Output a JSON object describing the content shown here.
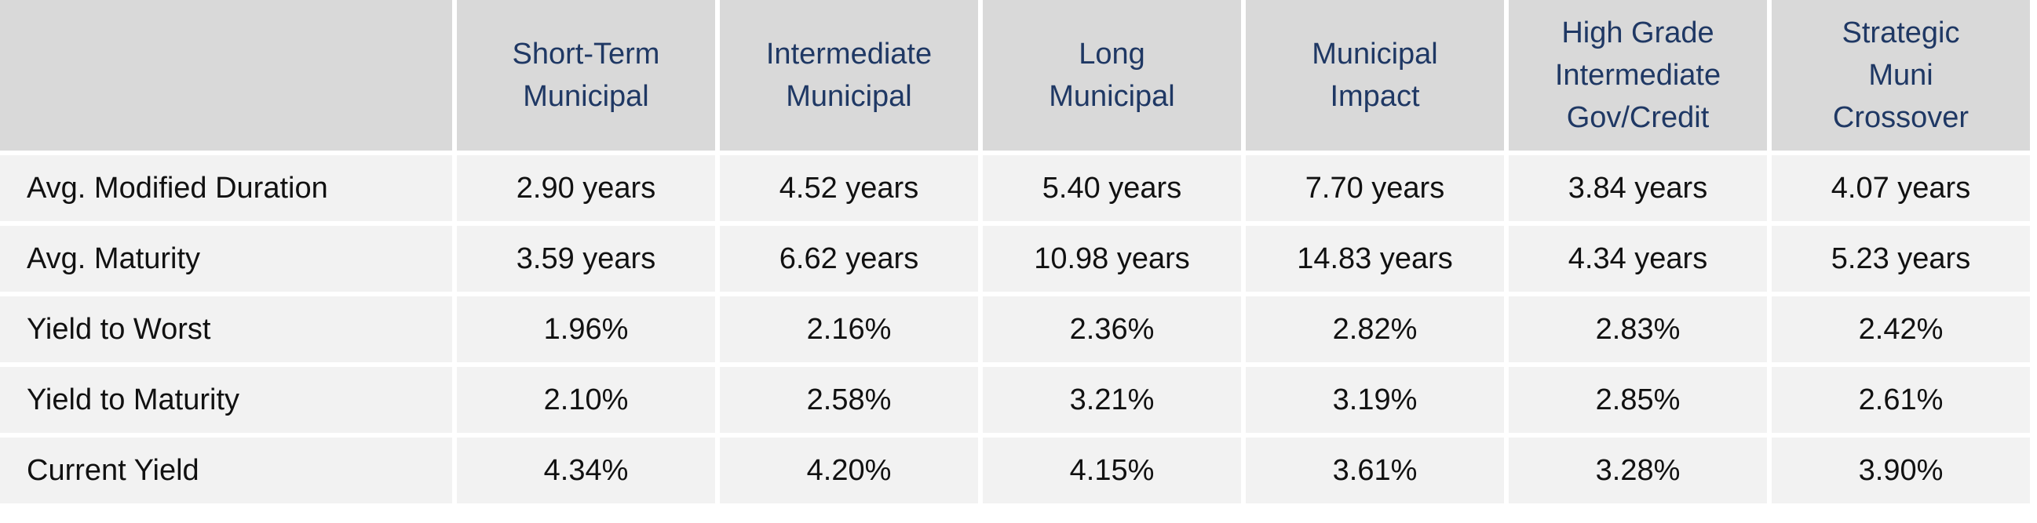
{
  "table": {
    "columns": [
      [
        "Short-Term",
        "Municipal"
      ],
      [
        "Intermediate",
        "Municipal"
      ],
      [
        "Long",
        "Municipal"
      ],
      [
        "Municipal",
        "Impact"
      ],
      [
        "High Grade",
        "Intermediate",
        "Gov/Credit"
      ],
      [
        "Strategic",
        "Muni",
        "Crossover"
      ]
    ],
    "rows": [
      {
        "label": "Avg. Modified Duration",
        "values": [
          "2.90 years",
          "4.52 years",
          "5.40 years",
          "7.70 years",
          "3.84 years",
          "4.07 years"
        ]
      },
      {
        "label": "Avg. Maturity",
        "values": [
          "3.59 years",
          "6.62 years",
          "10.98 years",
          "14.83 years",
          "4.34 years",
          "5.23 years"
        ]
      },
      {
        "label": "Yield to Worst",
        "values": [
          "1.96%",
          "2.16%",
          "2.36%",
          "2.82%",
          "2.83%",
          "2.42%"
        ]
      },
      {
        "label": "Yield to Maturity",
        "values": [
          "2.10%",
          "2.58%",
          "3.21%",
          "3.19%",
          "2.85%",
          "2.61%"
        ]
      },
      {
        "label": "Current Yield",
        "values": [
          "4.34%",
          "4.20%",
          "4.15%",
          "3.61%",
          "3.28%",
          "3.90%"
        ]
      }
    ]
  }
}
